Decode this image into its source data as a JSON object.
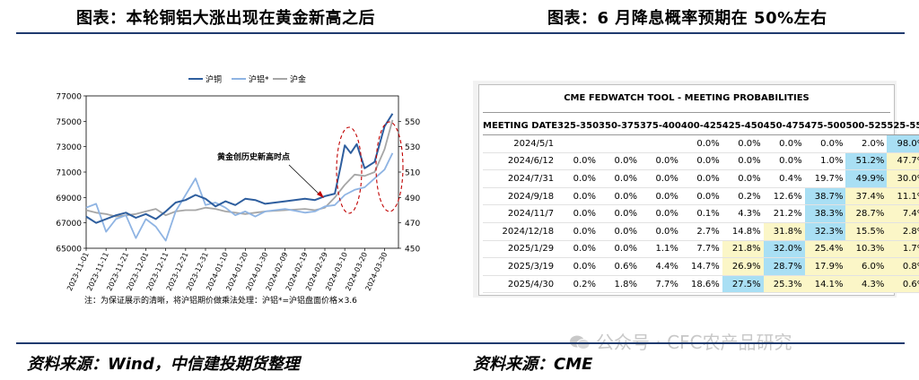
{
  "titles": {
    "left": "图表：本轮铜铝大涨出现在黄金新高之后",
    "right": "图表：6 月降息概率预期在 50%左右"
  },
  "sources": {
    "left": "资料来源：Wind，中信建投期货整理",
    "right": "资料来源：CME"
  },
  "watermark": "公众号 · CFC农产品研究",
  "chart_data": [
    {
      "type": "line",
      "title": "",
      "note": "注：为保证展示的清晰，将沪铝期价做乘法处理：沪铝*=沪铝盘面价格×3.6",
      "annotation": "黄金创历史新高时点",
      "x_ticks": [
        "2023-11-01",
        "2023-11-11",
        "2023-11-21",
        "2023-12-01",
        "2023-12-11",
        "2023-12-21",
        "2023-12-31",
        "2024-01-10",
        "2024-01-20",
        "2024-01-30",
        "2024-02-09",
        "2024-02-19",
        "2024-02-29",
        "2024-03-10",
        "2024-03-20",
        "2024-03-30"
      ],
      "y_left": {
        "min": 65000,
        "max": 77000,
        "ticks": [
          "65000",
          "67000",
          "69000",
          "71000",
          "73000",
          "75000",
          "77000"
        ]
      },
      "y_right": {
        "min": 450,
        "max": 570,
        "ticks": [
          "450",
          "470",
          "490",
          "510",
          "530",
          "550"
        ]
      },
      "legend_position": "top",
      "series": [
        {
          "name": "沪铜",
          "axis": "left",
          "color": "#2e5e9e",
          "x": [
            "2023-11-01",
            "2023-11-06",
            "2023-11-11",
            "2023-11-16",
            "2023-11-21",
            "2023-11-26",
            "2023-12-01",
            "2023-12-06",
            "2023-12-11",
            "2023-12-16",
            "2023-12-21",
            "2023-12-26",
            "2023-12-31",
            "2024-01-05",
            "2024-01-10",
            "2024-01-15",
            "2024-01-20",
            "2024-01-25",
            "2024-01-30",
            "2024-02-09",
            "2024-02-19",
            "2024-02-24",
            "2024-02-29",
            "2024-03-05",
            "2024-03-08",
            "2024-03-10",
            "2024-03-13",
            "2024-03-16",
            "2024-03-20",
            "2024-03-25",
            "2024-03-30",
            "2024-04-03"
          ],
          "values": [
            67500,
            67000,
            67300,
            67600,
            67800,
            67400,
            67700,
            67300,
            67900,
            68600,
            68800,
            69200,
            68900,
            68300,
            68700,
            68400,
            68900,
            68800,
            68500,
            68700,
            68900,
            68800,
            69100,
            69300,
            71500,
            73100,
            72500,
            73200,
            71300,
            71800,
            74600,
            75600
          ]
        },
        {
          "name": "沪铝*",
          "axis": "left",
          "color": "#8fb4e3",
          "x": [
            "2023-11-01",
            "2023-11-06",
            "2023-11-11",
            "2023-11-16",
            "2023-11-21",
            "2023-11-26",
            "2023-12-01",
            "2023-12-06",
            "2023-12-11",
            "2023-12-16",
            "2023-12-21",
            "2023-12-26",
            "2023-12-31",
            "2024-01-05",
            "2024-01-10",
            "2024-01-15",
            "2024-01-20",
            "2024-01-25",
            "2024-01-30",
            "2024-02-09",
            "2024-02-19",
            "2024-02-24",
            "2024-02-29",
            "2024-03-05",
            "2024-03-10",
            "2024-03-15",
            "2024-03-20",
            "2024-03-25",
            "2024-03-30",
            "2024-04-03"
          ],
          "values": [
            68200,
            68500,
            66300,
            67300,
            67600,
            65800,
            67300,
            66700,
            65600,
            67900,
            69200,
            70500,
            68400,
            68600,
            68200,
            67600,
            67900,
            67500,
            67900,
            68100,
            67800,
            67900,
            68300,
            68400,
            69200,
            69600,
            69800,
            70500,
            71200,
            72500
          ]
        },
        {
          "name": "沪金",
          "axis": "right",
          "color": "#a6a6a6",
          "x": [
            "2023-11-01",
            "2023-11-06",
            "2023-11-11",
            "2023-11-16",
            "2023-11-21",
            "2023-11-26",
            "2023-12-01",
            "2023-12-06",
            "2023-12-11",
            "2023-12-16",
            "2023-12-21",
            "2023-12-26",
            "2023-12-31",
            "2024-01-05",
            "2024-01-10",
            "2024-01-15",
            "2024-01-20",
            "2024-01-25",
            "2024-01-30",
            "2024-02-09",
            "2024-02-19",
            "2024-02-24",
            "2024-02-29",
            "2024-03-05",
            "2024-03-10",
            "2024-03-15",
            "2024-03-20",
            "2024-03-25",
            "2024-03-30",
            "2024-04-03"
          ],
          "values": [
            480,
            478,
            477,
            475,
            476,
            477,
            479,
            481,
            476,
            479,
            480,
            480,
            482,
            481,
            479,
            478,
            477,
            478,
            479,
            480,
            481,
            480,
            482,
            490,
            500,
            508,
            507,
            510,
            528,
            551
          ]
        }
      ]
    },
    {
      "type": "table",
      "title": "CME FEDWATCH TOOL - MEETING PROBABILITIES",
      "columns": [
        "MEETING DATE",
        "325-350",
        "350-375",
        "375-400",
        "400-425",
        "425-450",
        "450-475",
        "475-500",
        "500-525",
        "525-550"
      ],
      "rows": [
        {
          "cells": [
            "2024/5/1",
            "",
            "",
            "",
            "0.0%",
            "0.0%",
            "0.0%",
            "0.0%",
            "2.0%",
            "98.0%"
          ],
          "hl": {
            "9": "blue"
          }
        },
        {
          "cells": [
            "2024/6/12",
            "0.0%",
            "0.0%",
            "0.0%",
            "0.0%",
            "0.0%",
            "0.0%",
            "1.0%",
            "51.2%",
            "47.7%"
          ],
          "hl": {
            "8": "blue",
            "9": "yellow"
          }
        },
        {
          "cells": [
            "2024/7/31",
            "0.0%",
            "0.0%",
            "0.0%",
            "0.0%",
            "0.0%",
            "0.4%",
            "19.7%",
            "49.9%",
            "30.0%"
          ],
          "hl": {
            "8": "blue",
            "9": "yellow"
          }
        },
        {
          "cells": [
            "2024/9/18",
            "0.0%",
            "0.0%",
            "0.0%",
            "0.0%",
            "0.2%",
            "12.6%",
            "38.7%",
            "37.4%",
            "11.1%"
          ],
          "hl": {
            "7": "blue",
            "8": "yellow",
            "9": "yellow"
          }
        },
        {
          "cells": [
            "2024/11/7",
            "0.0%",
            "0.0%",
            "0.0%",
            "0.1%",
            "4.3%",
            "21.2%",
            "38.3%",
            "28.7%",
            "7.4%"
          ],
          "hl": {
            "7": "blue",
            "8": "yellow",
            "9": "yellow"
          }
        },
        {
          "cells": [
            "2024/12/18",
            "0.0%",
            "0.0%",
            "0.0%",
            "2.7%",
            "14.8%",
            "31.8%",
            "32.3%",
            "15.5%",
            "2.8%"
          ],
          "hl": {
            "6": "yellow",
            "7": "blue",
            "8": "yellow",
            "9": "yellow"
          }
        },
        {
          "cells": [
            "2025/1/29",
            "0.0%",
            "0.0%",
            "1.1%",
            "7.7%",
            "21.8%",
            "32.0%",
            "25.4%",
            "10.3%",
            "1.7%"
          ],
          "hl": {
            "5": "yellow",
            "6": "blue",
            "7": "yellow",
            "8": "yellow",
            "9": "yellow"
          }
        },
        {
          "cells": [
            "2025/3/19",
            "0.0%",
            "0.6%",
            "4.4%",
            "14.7%",
            "26.9%",
            "28.7%",
            "17.9%",
            "6.0%",
            "0.8%"
          ],
          "hl": {
            "5": "yellow",
            "6": "blue",
            "7": "yellow",
            "8": "yellow",
            "9": "yellow"
          }
        },
        {
          "cells": [
            "2025/4/30",
            "0.2%",
            "1.8%",
            "7.7%",
            "18.6%",
            "27.5%",
            "25.3%",
            "14.1%",
            "4.3%",
            "0.6%"
          ],
          "hl": {
            "5": "blue",
            "6": "yellow",
            "7": "yellow",
            "8": "yellow",
            "9": "yellow"
          }
        }
      ]
    }
  ]
}
